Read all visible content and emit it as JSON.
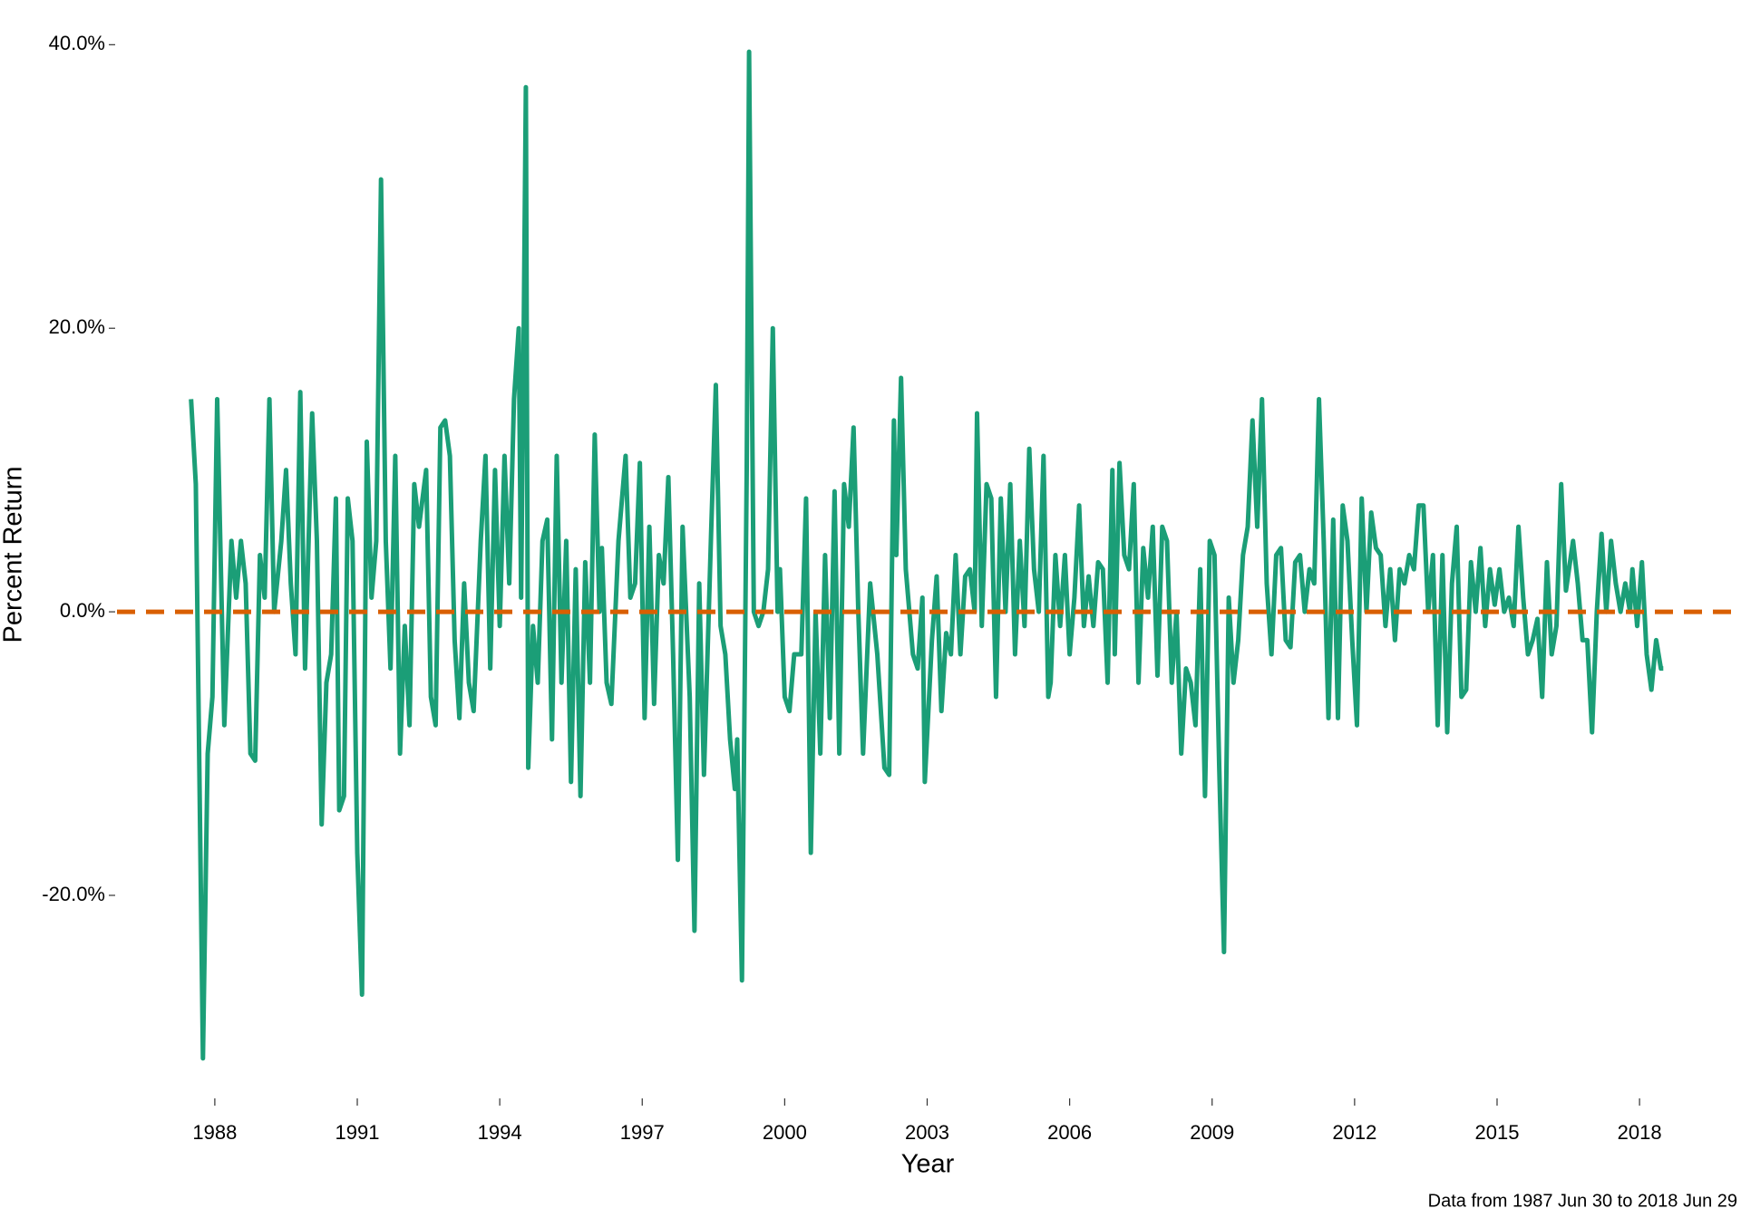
{
  "chart_data": {
    "type": "line",
    "x_label": "Year",
    "y_label": "Percent Return",
    "caption": "Data from 1987 Jun 30 to 2018 Jun 29",
    "xlim": [
      1985.94,
      2020.06
    ],
    "xticks": [
      1988,
      1991,
      1994,
      1997,
      2000,
      2003,
      2006,
      2009,
      2012,
      2015,
      2018
    ],
    "ylim": [
      -34,
      41.3
    ],
    "yticks": [
      {
        "value": -20,
        "label": "-20.0%"
      },
      {
        "value": 0,
        "label": "0.0%"
      },
      {
        "value": 20,
        "label": "20.0%"
      },
      {
        "value": 40,
        "label": "40.0%"
      }
    ],
    "grid": false,
    "reference_line": {
      "value": 0,
      "color": "#d95f02"
    },
    "series": [
      {
        "color": "#1b9e77",
        "x": [
          1987.5,
          1987.6,
          1987.75,
          1987.85,
          1987.95,
          1988.05,
          1988.2,
          1988.35,
          1988.45,
          1988.55,
          1988.65,
          1988.75,
          1988.85,
          1988.95,
          1989.05,
          1989.15,
          1989.25,
          1989.4,
          1989.5,
          1989.6,
          1989.7,
          1989.8,
          1989.9,
          1990.05,
          1990.15,
          1990.25,
          1990.35,
          1990.45,
          1990.55,
          1990.62,
          1990.72,
          1990.8,
          1990.9,
          1991.0,
          1991.1,
          1991.2,
          1991.3,
          1991.4,
          1991.5,
          1991.6,
          1991.7,
          1991.8,
          1991.9,
          1992.0,
          1992.1,
          1992.2,
          1992.3,
          1992.45,
          1992.55,
          1992.65,
          1992.75,
          1992.85,
          1992.95,
          1993.05,
          1993.15,
          1993.25,
          1993.35,
          1993.45,
          1993.6,
          1993.7,
          1993.8,
          1993.9,
          1994.0,
          1994.1,
          1994.2,
          1994.3,
          1994.4,
          1994.45,
          1994.5,
          1994.55,
          1994.6,
          1994.7,
          1994.8,
          1994.9,
          1995.0,
          1995.1,
          1995.2,
          1995.3,
          1995.4,
          1995.5,
          1995.6,
          1995.7,
          1995.8,
          1995.9,
          1996.0,
          1996.1,
          1996.15,
          1996.25,
          1996.35,
          1996.5,
          1996.65,
          1996.75,
          1996.85,
          1996.95,
          1997.05,
          1997.15,
          1997.25,
          1997.35,
          1997.45,
          1997.55,
          1997.65,
          1997.75,
          1997.85,
          1998.0,
          1998.1,
          1998.2,
          1998.3,
          1998.45,
          1998.55,
          1998.65,
          1998.75,
          1998.85,
          1998.95,
          1999.0,
          1999.1,
          1999.2,
          1999.25,
          1999.35,
          1999.45,
          1999.55,
          1999.65,
          1999.75,
          1999.85,
          1999.9,
          2000.0,
          2000.1,
          2000.2,
          2000.35,
          2000.45,
          2000.55,
          2000.65,
          2000.75,
          2000.85,
          2000.95,
          2001.05,
          2001.15,
          2001.25,
          2001.35,
          2001.45,
          2001.55,
          2001.65,
          2001.8,
          2001.95,
          2002.1,
          2002.2,
          2002.3,
          2002.35,
          2002.45,
          2002.55,
          2002.7,
          2002.8,
          2002.9,
          2002.95,
          2003.1,
          2003.2,
          2003.3,
          2003.4,
          2003.5,
          2003.6,
          2003.7,
          2003.8,
          2003.9,
          2004.0,
          2004.05,
          2004.15,
          2004.25,
          2004.35,
          2004.45,
          2004.55,
          2004.65,
          2004.75,
          2004.85,
          2004.95,
          2005.05,
          2005.15,
          2005.25,
          2005.35,
          2005.45,
          2005.55,
          2005.6,
          2005.7,
          2005.8,
          2005.9,
          2006.0,
          2006.1,
          2006.2,
          2006.3,
          2006.4,
          2006.5,
          2006.6,
          2006.7,
          2006.8,
          2006.9,
          2006.95,
          2007.05,
          2007.15,
          2007.25,
          2007.35,
          2007.45,
          2007.55,
          2007.65,
          2007.75,
          2007.85,
          2007.95,
          2008.05,
          2008.15,
          2008.25,
          2008.35,
          2008.45,
          2008.55,
          2008.65,
          2008.75,
          2008.85,
          2008.95,
          2009.05,
          2009.15,
          2009.25,
          2009.35,
          2009.45,
          2009.55,
          2009.65,
          2009.75,
          2009.85,
          2009.95,
          2010.05,
          2010.15,
          2010.25,
          2010.35,
          2010.45,
          2010.55,
          2010.65,
          2010.75,
          2010.85,
          2010.95,
          2011.05,
          2011.15,
          2011.25,
          2011.35,
          2011.45,
          2011.55,
          2011.65,
          2011.75,
          2011.85,
          2011.95,
          2012.05,
          2012.15,
          2012.25,
          2012.35,
          2012.45,
          2012.55,
          2012.65,
          2012.75,
          2012.85,
          2012.95,
          2013.05,
          2013.15,
          2013.25,
          2013.35,
          2013.45,
          2013.55,
          2013.65,
          2013.75,
          2013.85,
          2013.95,
          2014.05,
          2014.15,
          2014.25,
          2014.35,
          2014.45,
          2014.55,
          2014.65,
          2014.75,
          2014.85,
          2014.95,
          2015.05,
          2015.15,
          2015.25,
          2015.35,
          2015.45,
          2015.55,
          2015.65,
          2015.75,
          2015.85,
          2015.95,
          2016.05,
          2016.15,
          2016.25,
          2016.35,
          2016.45,
          2016.6,
          2016.7,
          2016.8,
          2016.9,
          2017.0,
          2017.1,
          2017.2,
          2017.3,
          2017.4,
          2017.5,
          2017.6,
          2017.7,
          2017.8,
          2017.85,
          2017.95,
          2018.05,
          2018.15,
          2018.25,
          2018.35,
          2018.45,
          2018.5
        ],
        "values": [
          15,
          9,
          -31.5,
          -10,
          -6,
          15,
          -8,
          5,
          1,
          5,
          2,
          -10,
          -10.5,
          4,
          1,
          15,
          0,
          5,
          10,
          2,
          -3,
          15.5,
          -4,
          14,
          5,
          -15,
          -5,
          -3,
          8,
          -14,
          -13,
          8,
          5,
          -17,
          -27,
          12,
          1,
          5,
          30.5,
          5,
          -4,
          11,
          -10,
          -1,
          -8,
          9,
          6,
          10,
          -6,
          -8,
          13,
          13.5,
          11,
          -2,
          -7.5,
          2,
          -5,
          -7,
          5,
          11,
          -4,
          10,
          -1,
          11,
          2,
          15,
          20,
          1,
          18,
          37,
          -11,
          -1,
          -5,
          5,
          6.5,
          -9,
          11,
          -5,
          5,
          -12,
          3,
          -13,
          3.5,
          -5,
          12.5,
          0,
          4.5,
          -5,
          -6.5,
          5,
          11,
          1,
          2,
          10.5,
          -7.5,
          6,
          -6.5,
          4,
          2,
          9.5,
          -3,
          -17.5,
          6,
          -6,
          -22.5,
          2,
          -11.5,
          5.5,
          16,
          -1,
          -3,
          -9,
          -12.5,
          -9,
          -26,
          10,
          39.5,
          0,
          -1,
          0,
          3,
          20,
          0,
          3,
          -6,
          -7,
          -3,
          -3,
          8,
          -17,
          0,
          -10,
          4,
          -7.5,
          8.5,
          -10,
          9,
          6,
          13,
          0,
          -10,
          2,
          -3,
          -11,
          -11.5,
          13.5,
          4,
          16.5,
          3,
          -3,
          -4,
          1,
          -12,
          -2,
          2.5,
          -7,
          -1.5,
          -3,
          4,
          -3,
          2.5,
          3,
          0,
          14,
          -1,
          9,
          8,
          -6,
          8,
          0,
          9,
          -3,
          5,
          -1,
          11.5,
          3,
          0,
          11,
          -6,
          -5,
          4,
          -1,
          4,
          -3,
          1,
          7.5,
          -1,
          2.5,
          -1,
          3.5,
          3,
          -5,
          10,
          -3,
          10.5,
          4,
          3,
          9,
          -5,
          4.5,
          1,
          6,
          -4.5,
          6,
          5,
          -5,
          0,
          -10,
          -4,
          -5,
          -8,
          3,
          -13,
          5,
          4,
          -11,
          -24,
          1,
          -5,
          -2,
          4,
          6,
          13.5,
          6,
          15,
          2,
          -3,
          4,
          4.5,
          -2,
          -2.5,
          3.5,
          4,
          0,
          3,
          2,
          15,
          5,
          -7.5,
          6.5,
          -7.5,
          7.5,
          5,
          -2,
          -8,
          8,
          0,
          7,
          4.5,
          4,
          -1,
          3,
          -2,
          3,
          2,
          4,
          3,
          7.5,
          7.5,
          0,
          4,
          -8,
          4,
          -8.5,
          2,
          6,
          -6,
          -5.5,
          3.5,
          0,
          4.5,
          -1,
          3,
          0.5,
          3,
          0,
          1,
          -1,
          6,
          1,
          -3,
          -2,
          -0.5,
          -6,
          3.5,
          -3,
          -1,
          9,
          1.5,
          5,
          2,
          -2,
          -2,
          -8.5,
          0,
          5.5,
          0,
          5,
          2,
          0,
          2,
          0,
          3,
          -1,
          3.5,
          -3,
          -5.5,
          -2,
          -4,
          -4
        ]
      }
    ]
  }
}
